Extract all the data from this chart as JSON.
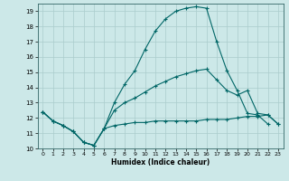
{
  "xlabel": "Humidex (Indice chaleur)",
  "background_color": "#cce8e8",
  "grid_color": "#aacccc",
  "line_color": "#006666",
  "xlim": [
    -0.5,
    23.5
  ],
  "ylim": [
    10,
    19.5
  ],
  "xticks": [
    0,
    1,
    2,
    3,
    4,
    5,
    6,
    7,
    8,
    9,
    10,
    11,
    12,
    13,
    14,
    15,
    16,
    17,
    18,
    19,
    20,
    21,
    22,
    23
  ],
  "yticks": [
    10,
    11,
    12,
    13,
    14,
    15,
    16,
    17,
    18,
    19
  ],
  "line_top_x": [
    0,
    1,
    2,
    3,
    4,
    5,
    6,
    7,
    8,
    9,
    10,
    11,
    12,
    13,
    14,
    15,
    16,
    17,
    18,
    19,
    20,
    21,
    22
  ],
  "line_top_y": [
    12.4,
    11.8,
    11.5,
    11.1,
    10.4,
    10.2,
    11.3,
    13.0,
    14.2,
    15.1,
    16.5,
    17.7,
    18.5,
    19.0,
    19.2,
    19.3,
    19.2,
    17.0,
    15.1,
    13.8,
    12.3,
    12.2,
    11.6
  ],
  "line_mid_x": [
    0,
    1,
    2,
    3,
    4,
    5,
    6,
    7,
    8,
    9,
    10,
    11,
    12,
    13,
    14,
    15,
    16,
    17,
    18,
    19,
    20,
    21,
    22,
    23
  ],
  "line_mid_y": [
    12.4,
    11.8,
    11.5,
    11.1,
    10.4,
    10.2,
    11.3,
    12.5,
    13.0,
    13.3,
    13.7,
    14.1,
    14.4,
    14.7,
    14.9,
    15.1,
    15.2,
    14.5,
    13.8,
    13.5,
    13.8,
    12.3,
    12.2,
    11.6
  ],
  "line_bot_x": [
    0,
    1,
    2,
    3,
    4,
    5,
    6,
    7,
    8,
    9,
    10,
    11,
    12,
    13,
    14,
    15,
    16,
    17,
    18,
    19,
    20,
    21,
    22,
    23
  ],
  "line_bot_y": [
    12.4,
    11.8,
    11.5,
    11.1,
    10.4,
    10.2,
    11.3,
    11.5,
    11.6,
    11.7,
    11.7,
    11.8,
    11.8,
    11.8,
    11.8,
    11.8,
    11.9,
    11.9,
    11.9,
    12.0,
    12.1,
    12.1,
    12.2,
    11.6
  ]
}
